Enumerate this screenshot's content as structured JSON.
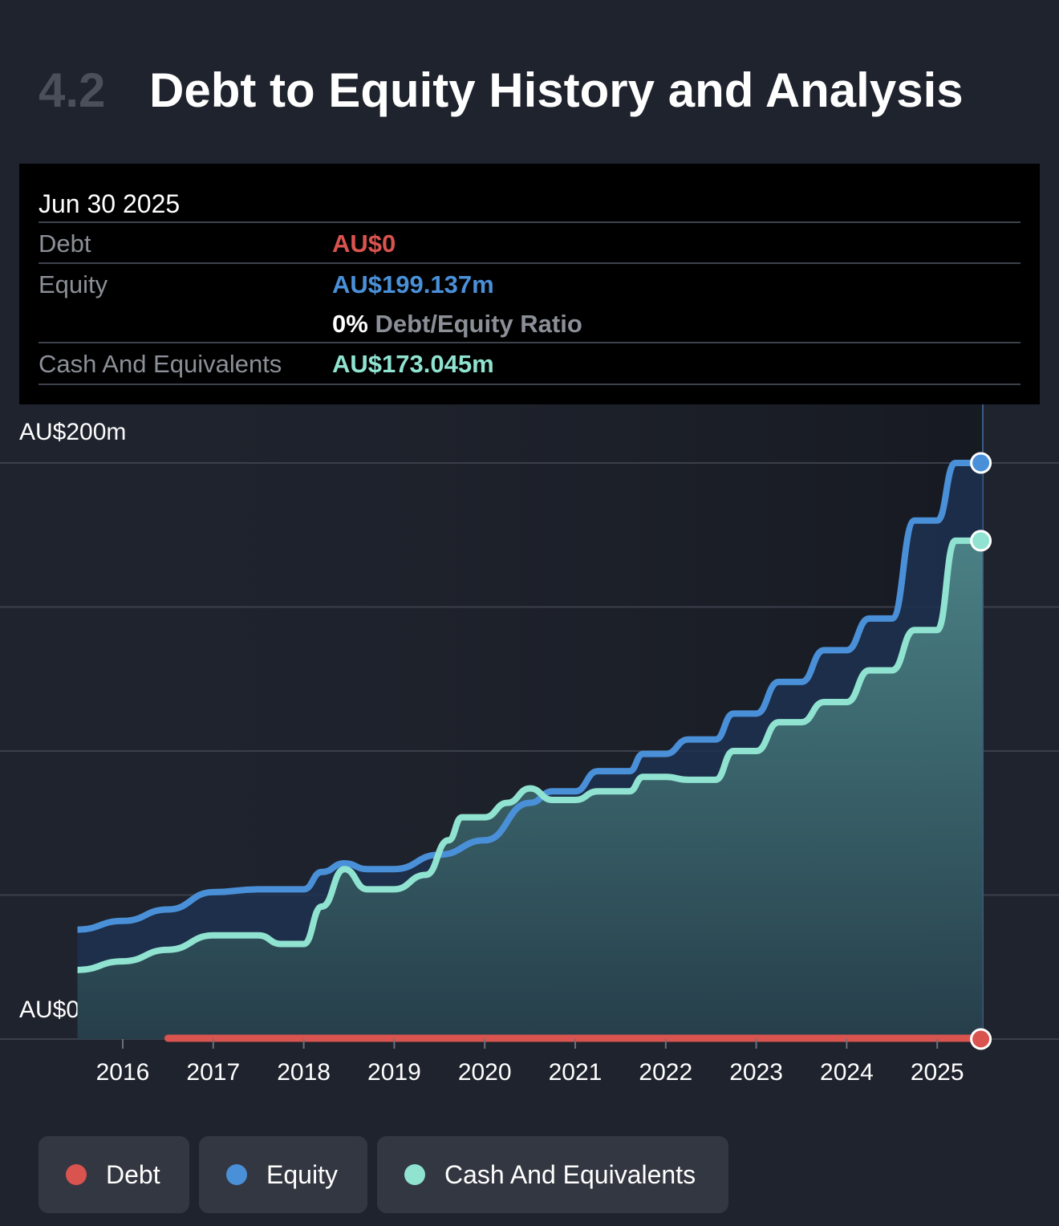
{
  "header": {
    "section_number": "4.2",
    "title": "Debt to Equity History and Analysis"
  },
  "tooltip": {
    "date": "Jun 30 2025",
    "debt_label": "Debt",
    "debt_value": "AU$0",
    "equity_label": "Equity",
    "equity_value": "AU$199.137m",
    "ratio_value": "0%",
    "ratio_label": "Debt/Equity Ratio",
    "cash_label": "Cash And Equivalents",
    "cash_value": "AU$173.045m"
  },
  "colors": {
    "debt": "#d9534f",
    "equity": "#4a90d9",
    "cash": "#8fe3d0",
    "background": "#1f232d"
  },
  "chart_data": {
    "type": "area",
    "x_unit": "year",
    "y_unit": "AU$m",
    "ylim": [
      0,
      200
    ],
    "y_tick_labels": [
      "AU$200m",
      "AU$0"
    ],
    "x_tick_labels": [
      "2016",
      "2017",
      "2018",
      "2019",
      "2020",
      "2021",
      "2022",
      "2023",
      "2024",
      "2025"
    ],
    "x_ticks": [
      2016,
      2017,
      2018,
      2019,
      2020,
      2021,
      2022,
      2023,
      2024,
      2025
    ],
    "xlim": [
      2015.5,
      2025.5
    ],
    "grid": true,
    "legend_position": "bottom",
    "series": [
      {
        "name": "Equity",
        "color": "#4a90d9",
        "points": [
          [
            2015.5,
            38
          ],
          [
            2016.0,
            41
          ],
          [
            2016.5,
            45
          ],
          [
            2017.0,
            51
          ],
          [
            2017.5,
            52
          ],
          [
            2018.0,
            52
          ],
          [
            2018.2,
            58
          ],
          [
            2018.45,
            61
          ],
          [
            2018.7,
            59
          ],
          [
            2019.0,
            59
          ],
          [
            2019.5,
            64
          ],
          [
            2020.0,
            69
          ],
          [
            2020.5,
            82
          ],
          [
            2020.75,
            86
          ],
          [
            2021.0,
            86
          ],
          [
            2021.25,
            93
          ],
          [
            2021.6,
            93
          ],
          [
            2021.75,
            99
          ],
          [
            2022.0,
            99
          ],
          [
            2022.25,
            104
          ],
          [
            2022.55,
            104
          ],
          [
            2022.75,
            113
          ],
          [
            2023.0,
            113
          ],
          [
            2023.25,
            124
          ],
          [
            2023.5,
            124
          ],
          [
            2023.75,
            135
          ],
          [
            2024.0,
            135
          ],
          [
            2024.25,
            146
          ],
          [
            2024.5,
            146
          ],
          [
            2024.75,
            180
          ],
          [
            2025.0,
            180
          ],
          [
            2025.2,
            200
          ],
          [
            2025.5,
            200
          ]
        ]
      },
      {
        "name": "Cash And Equivalents",
        "color": "#8fe3d0",
        "points": [
          [
            2015.5,
            24
          ],
          [
            2016.0,
            27
          ],
          [
            2016.5,
            31
          ],
          [
            2017.0,
            36
          ],
          [
            2017.5,
            36
          ],
          [
            2017.75,
            33
          ],
          [
            2018.0,
            33
          ],
          [
            2018.2,
            46
          ],
          [
            2018.45,
            59
          ],
          [
            2018.7,
            52
          ],
          [
            2019.0,
            52
          ],
          [
            2019.35,
            57
          ],
          [
            2019.6,
            69
          ],
          [
            2019.75,
            77
          ],
          [
            2020.0,
            77
          ],
          [
            2020.25,
            82
          ],
          [
            2020.5,
            87
          ],
          [
            2020.75,
            83
          ],
          [
            2021.0,
            83
          ],
          [
            2021.25,
            86
          ],
          [
            2021.6,
            86
          ],
          [
            2021.75,
            91
          ],
          [
            2022.0,
            91
          ],
          [
            2022.25,
            90
          ],
          [
            2022.55,
            90
          ],
          [
            2022.75,
            100
          ],
          [
            2023.0,
            100
          ],
          [
            2023.25,
            110
          ],
          [
            2023.5,
            110
          ],
          [
            2023.75,
            117
          ],
          [
            2024.0,
            117
          ],
          [
            2024.25,
            128
          ],
          [
            2024.5,
            128
          ],
          [
            2024.75,
            142
          ],
          [
            2025.0,
            142
          ],
          [
            2025.2,
            173
          ],
          [
            2025.5,
            173
          ]
        ]
      },
      {
        "name": "Debt",
        "color": "#d9534f",
        "points": [
          [
            2016.5,
            0
          ],
          [
            2025.5,
            0
          ]
        ]
      }
    ]
  },
  "legend": {
    "items": [
      {
        "label": "Debt",
        "color": "#d9534f"
      },
      {
        "label": "Equity",
        "color": "#4a90d9"
      },
      {
        "label": "Cash And Equivalents",
        "color": "#8fe3d0"
      }
    ]
  }
}
